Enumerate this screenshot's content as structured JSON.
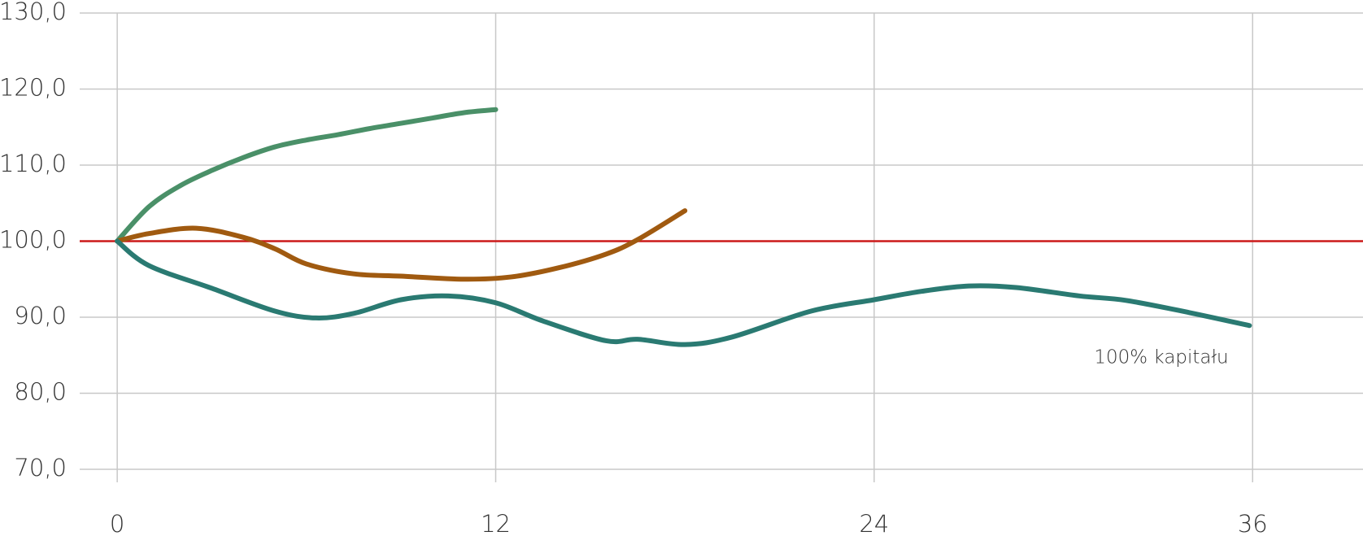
{
  "chart_data": {
    "type": "line",
    "annotation": "100% kapitału",
    "xlim": [
      -1.19,
      39.5
    ],
    "xticks": [
      0,
      12,
      24,
      36
    ],
    "ylim": [
      70,
      130
    ],
    "yticks": [
      {
        "value": 70,
        "label": "70,0"
      },
      {
        "value": 80,
        "label": "80,0"
      },
      {
        "value": 90,
        "label": "90,0"
      },
      {
        "value": 100,
        "label": "100,0"
      },
      {
        "value": 110,
        "label": "110,0"
      },
      {
        "value": 120,
        "label": "120,0"
      },
      {
        "value": 130,
        "label": "130,0"
      }
    ],
    "grid": true,
    "reference_line": {
      "value": 100,
      "color": "#cc1a1a"
    },
    "series": [
      {
        "color": "#4a9068",
        "x": [
          0,
          1,
          2,
          3,
          4,
          5,
          6,
          7,
          8,
          9,
          10,
          11,
          12
        ],
        "values": [
          100,
          104.5,
          107.3,
          109.3,
          111,
          112.4,
          113.3,
          114,
          114.8,
          115.5,
          116.2,
          116.9,
          117.3
        ]
      },
      {
        "color": "#a05a10",
        "x": [
          0,
          1,
          2.5,
          4,
          5,
          6,
          7.5,
          9,
          11,
          12.5,
          14,
          15.5,
          16.5,
          18
        ],
        "values": [
          100,
          101,
          101.7,
          100.5,
          99,
          97,
          95.7,
          95.4,
          95,
          95.3,
          96.5,
          98.3,
          100.2,
          104
        ]
      },
      {
        "color": "#2a7a72",
        "x": [
          0,
          1,
          3,
          5,
          6.3,
          7.5,
          9,
          10.5,
          12,
          13.5,
          15.5,
          16.5,
          18,
          19.5,
          22,
          24,
          25.5,
          27,
          28.5,
          30.5,
          32,
          34,
          35.9
        ],
        "values": [
          100,
          96.8,
          93.8,
          90.8,
          89.9,
          90.5,
          92.3,
          92.8,
          91.9,
          89.5,
          86.9,
          87.1,
          86.4,
          87.4,
          90.8,
          92.3,
          93.4,
          94.1,
          93.9,
          92.8,
          92.2,
          90.6,
          88.9
        ]
      }
    ]
  }
}
